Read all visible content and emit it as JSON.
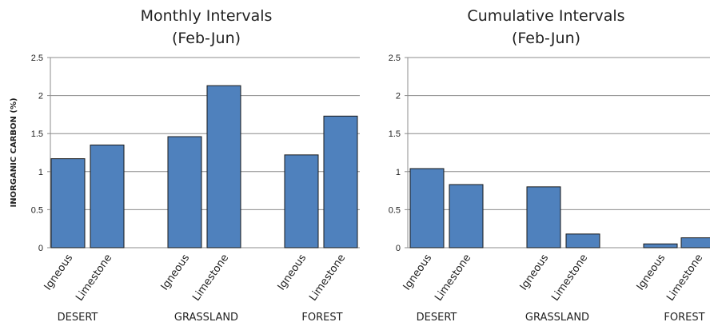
{
  "colors": {
    "bar": "#4f81bd"
  },
  "chart_data": [
    {
      "type": "bar",
      "title_line1": "Monthly Intervals",
      "title_line2": "(Feb-Jun)",
      "ylabel": "INORGANIC CARBON (%)",
      "ylim": [
        0,
        2.5
      ],
      "yticks": [
        "0",
        "0.5",
        "1",
        "1.5",
        "2",
        "2.5"
      ],
      "groups": [
        "DESERT",
        "GRASSLAND",
        "FOREST"
      ],
      "categories": [
        "Igneous",
        "Limestone",
        "Igneous",
        "Limestone",
        "Igneous",
        "Limestone"
      ],
      "values": [
        1.17,
        1.35,
        1.46,
        2.13,
        1.22,
        1.73
      ],
      "grid": true,
      "legend": "none"
    },
    {
      "type": "bar",
      "title_line1": "Cumulative Intervals",
      "title_line2": "(Feb-Jun)",
      "ylabel": "",
      "ylim": [
        0,
        2.5
      ],
      "yticks": [
        "0",
        "0.5",
        "1",
        "1.5",
        "2",
        "2.5"
      ],
      "groups": [
        "DESERT",
        "GRASSLAND",
        "FOREST"
      ],
      "categories": [
        "Igneous",
        "Limestone",
        "Igneous",
        "Limestone",
        "Igneous",
        "Limestone"
      ],
      "values": [
        1.04,
        0.83,
        0.8,
        0.18,
        0.05,
        0.13
      ],
      "grid": true,
      "legend": "none"
    }
  ]
}
